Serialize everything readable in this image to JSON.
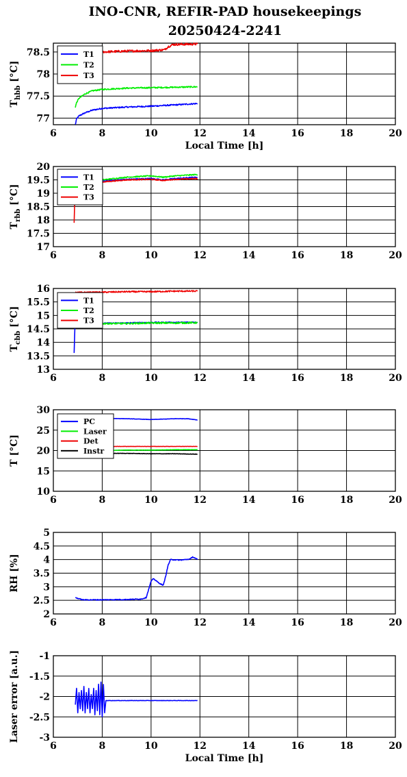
{
  "figure": {
    "title_line1": "INO-CNR, REFIR-PAD housekeepings",
    "title_line2": "20250424-2241"
  },
  "chart_data": [
    {
      "type": "line",
      "ylabel": "T",
      "ylabel_sub": "hbb",
      "ylabel_unit": "[°C]",
      "xlabel": "Local Time [h]",
      "xlim": [
        6,
        20
      ],
      "ylim": [
        76.85,
        78.7
      ],
      "xticks": [
        "6",
        "8",
        "10",
        "12",
        "14",
        "16",
        "18",
        "20"
      ],
      "yticks": [
        {
          "v": 77,
          "label": "77"
        },
        {
          "v": 77.5,
          "label": "77.5"
        },
        {
          "v": 78,
          "label": "78"
        },
        {
          "v": 78.5,
          "label": "78.5"
        }
      ],
      "grid": true,
      "legend_position": "top-left",
      "series": [
        {
          "name": "T1",
          "color": "#0000ff",
          "noise": 0.015,
          "points": [
            [
              6.9,
              76.85
            ],
            [
              6.95,
              76.98
            ],
            [
              7.05,
              77.05
            ],
            [
              7.3,
              77.12
            ],
            [
              7.6,
              77.18
            ],
            [
              8.0,
              77.22
            ],
            [
              9.0,
              77.25
            ],
            [
              10.0,
              77.27
            ],
            [
              11.0,
              77.3
            ],
            [
              11.9,
              77.33
            ]
          ]
        },
        {
          "name": "T2",
          "color": "#00ee00",
          "noise": 0.015,
          "points": [
            [
              6.9,
              77.25
            ],
            [
              6.95,
              77.35
            ],
            [
              7.05,
              77.45
            ],
            [
              7.3,
              77.55
            ],
            [
              7.6,
              77.62
            ],
            [
              8.0,
              77.65
            ],
            [
              9.0,
              77.68
            ],
            [
              10.0,
              77.69
            ],
            [
              11.0,
              77.7
            ],
            [
              11.9,
              77.71
            ]
          ]
        },
        {
          "name": "T3",
          "color": "#ee0000",
          "noise": 0.025,
          "points": [
            [
              7.0,
              78.48
            ],
            [
              8.0,
              78.5
            ],
            [
              9.0,
              78.52
            ],
            [
              10.0,
              78.53
            ],
            [
              10.55,
              78.55
            ],
            [
              10.7,
              78.62
            ],
            [
              10.9,
              78.67
            ],
            [
              11.9,
              78.68
            ]
          ]
        }
      ]
    },
    {
      "type": "line",
      "ylabel": "T",
      "ylabel_sub": "rbb",
      "ylabel_unit": "[°C]",
      "xlabel": "",
      "xlim": [
        6,
        20
      ],
      "ylim": [
        17,
        20
      ],
      "xticks": [
        "6",
        "8",
        "10",
        "12",
        "14",
        "16",
        "18",
        "20"
      ],
      "yticks": [
        {
          "v": 17,
          "label": "17"
        },
        {
          "v": 17.5,
          "label": "17.5"
        },
        {
          "v": 18,
          "label": "18"
        },
        {
          "v": 18.5,
          "label": "18.5"
        },
        {
          "v": 19,
          "label": "19"
        },
        {
          "v": 19.5,
          "label": "19.5"
        },
        {
          "v": 20,
          "label": "20"
        }
      ],
      "grid": true,
      "legend_position": "top-left",
      "series": [
        {
          "name": "T1",
          "color": "#0000ff",
          "noise": 0.02,
          "points": [
            [
              6.85,
              18.6
            ],
            [
              6.9,
              19.2
            ],
            [
              7.2,
              19.35
            ],
            [
              8.0,
              19.45
            ],
            [
              9.0,
              19.52
            ],
            [
              10.0,
              19.55
            ],
            [
              10.5,
              19.5
            ],
            [
              11.0,
              19.55
            ],
            [
              11.9,
              19.6
            ]
          ]
        },
        {
          "name": "T2",
          "color": "#00ee00",
          "noise": 0.02,
          "points": [
            [
              6.85,
              18.9
            ],
            [
              6.9,
              19.3
            ],
            [
              7.2,
              19.4
            ],
            [
              8.0,
              19.5
            ],
            [
              9.0,
              19.6
            ],
            [
              10.0,
              19.65
            ],
            [
              10.5,
              19.6
            ],
            [
              11.0,
              19.65
            ],
            [
              11.9,
              19.7
            ]
          ]
        },
        {
          "name": "T3",
          "color": "#ee0000",
          "noise": 0.02,
          "points": [
            [
              6.85,
              17.9
            ],
            [
              6.88,
              18.9
            ],
            [
              6.9,
              19.25
            ],
            [
              7.2,
              19.35
            ],
            [
              8.0,
              19.42
            ],
            [
              9.0,
              19.5
            ],
            [
              10.0,
              19.52
            ],
            [
              10.5,
              19.48
            ],
            [
              11.0,
              19.52
            ],
            [
              11.9,
              19.55
            ]
          ]
        }
      ]
    },
    {
      "type": "line",
      "ylabel": "T",
      "ylabel_sub": "cbb",
      "ylabel_unit": "[°C]",
      "xlabel": "",
      "xlim": [
        6,
        20
      ],
      "ylim": [
        13,
        16
      ],
      "xticks": [
        "6",
        "8",
        "10",
        "12",
        "14",
        "16",
        "18",
        "20"
      ],
      "yticks": [
        {
          "v": 13,
          "label": "13"
        },
        {
          "v": 13.5,
          "label": "13.5"
        },
        {
          "v": 14,
          "label": "14"
        },
        {
          "v": 14.5,
          "label": "14.5"
        },
        {
          "v": 15,
          "label": "15"
        },
        {
          "v": 15.5,
          "label": "15.5"
        },
        {
          "v": 16,
          "label": "16"
        }
      ],
      "grid": true,
      "legend_position": "top-left",
      "series": [
        {
          "name": "T1",
          "color": "#0000ff",
          "noise": 0.02,
          "points": [
            [
              6.85,
              13.6
            ],
            [
              6.88,
              14.5
            ],
            [
              6.9,
              14.68
            ],
            [
              7.5,
              14.7
            ],
            [
              9.0,
              14.72
            ],
            [
              10.0,
              14.74
            ],
            [
              11.0,
              14.74
            ],
            [
              11.9,
              14.75
            ]
          ]
        },
        {
          "name": "T2",
          "color": "#00ee00",
          "noise": 0.03,
          "points": [
            [
              6.88,
              14.65
            ],
            [
              7.5,
              14.7
            ],
            [
              9.0,
              14.7
            ],
            [
              10.0,
              14.72
            ],
            [
              11.0,
              14.72
            ],
            [
              11.9,
              14.73
            ]
          ]
        },
        {
          "name": "T3",
          "color": "#ee0000",
          "noise": 0.025,
          "points": [
            [
              6.9,
              15.85
            ],
            [
              8.0,
              15.86
            ],
            [
              9.0,
              15.88
            ],
            [
              10.0,
              15.88
            ],
            [
              11.0,
              15.9
            ],
            [
              11.9,
              15.9
            ]
          ]
        }
      ]
    },
    {
      "type": "line",
      "ylabel": "T [°C]",
      "ylabel_sub": "",
      "ylabel_unit": "",
      "xlabel": "",
      "xlim": [
        6,
        20
      ],
      "ylim": [
        10,
        30
      ],
      "xticks": [
        "6",
        "8",
        "10",
        "12",
        "14",
        "16",
        "18",
        "20"
      ],
      "yticks": [
        {
          "v": 10,
          "label": "10"
        },
        {
          "v": 15,
          "label": "15"
        },
        {
          "v": 20,
          "label": "20"
        },
        {
          "v": 25,
          "label": "25"
        },
        {
          "v": 30,
          "label": "30"
        }
      ],
      "grid": true,
      "legend_position": "top-left",
      "series": [
        {
          "name": "PC",
          "color": "#0000ff",
          "noise": 0.04,
          "points": [
            [
              6.9,
              27.8
            ],
            [
              8.0,
              27.9
            ],
            [
              9.0,
              27.8
            ],
            [
              10.0,
              27.6
            ],
            [
              11.0,
              27.8
            ],
            [
              11.5,
              27.8
            ],
            [
              11.9,
              27.5
            ]
          ]
        },
        {
          "name": "Laser",
          "color": "#00ee00",
          "noise": 0.03,
          "points": [
            [
              6.9,
              20.0
            ],
            [
              8.0,
              20.0
            ],
            [
              9.0,
              20.1
            ],
            [
              10.0,
              20.1
            ],
            [
              11.0,
              20.2
            ],
            [
              11.9,
              20.2
            ]
          ]
        },
        {
          "name": "Det",
          "color": "#ee0000",
          "noise": 0.03,
          "points": [
            [
              6.9,
              21.0
            ],
            [
              8.0,
              21.0
            ],
            [
              9.0,
              21.0
            ],
            [
              10.0,
              21.0
            ],
            [
              11.0,
              21.0
            ],
            [
              11.9,
              21.0
            ]
          ]
        },
        {
          "name": "Instr",
          "color": "#000000",
          "noise": 0.05,
          "points": [
            [
              6.9,
              19.3
            ],
            [
              8.0,
              19.3
            ],
            [
              9.0,
              19.3
            ],
            [
              10.0,
              19.2
            ],
            [
              11.0,
              19.2
            ],
            [
              11.9,
              19.1
            ]
          ]
        }
      ]
    },
    {
      "type": "line",
      "ylabel": "RH [%]",
      "ylabel_sub": "",
      "ylabel_unit": "",
      "xlabel": "",
      "xlim": [
        6,
        20
      ],
      "ylim": [
        2,
        5
      ],
      "xticks": [
        "6",
        "8",
        "10",
        "12",
        "14",
        "16",
        "18",
        "20"
      ],
      "yticks": [
        {
          "v": 2,
          "label": "2"
        },
        {
          "v": 2.5,
          "label": "2.5"
        },
        {
          "v": 3,
          "label": "3"
        },
        {
          "v": 3.5,
          "label": "3.5"
        },
        {
          "v": 4,
          "label": "4"
        },
        {
          "v": 4.5,
          "label": "4.5"
        },
        {
          "v": 5,
          "label": "5"
        }
      ],
      "grid": true,
      "legend_position": "none",
      "series": [
        {
          "name": "",
          "color": "#0000ff",
          "noise": 0.015,
          "points": [
            [
              6.9,
              2.6
            ],
            [
              7.2,
              2.52
            ],
            [
              8.0,
              2.52
            ],
            [
              9.0,
              2.53
            ],
            [
              9.6,
              2.55
            ],
            [
              9.8,
              2.6
            ],
            [
              9.9,
              2.9
            ],
            [
              10.0,
              3.2
            ],
            [
              10.1,
              3.3
            ],
            [
              10.3,
              3.15
            ],
            [
              10.5,
              3.05
            ],
            [
              10.6,
              3.4
            ],
            [
              10.7,
              3.8
            ],
            [
              10.8,
              4.0
            ],
            [
              11.2,
              3.98
            ],
            [
              11.6,
              4.02
            ],
            [
              11.7,
              4.1
            ],
            [
              11.8,
              4.05
            ],
            [
              11.9,
              4.0
            ]
          ]
        }
      ]
    },
    {
      "type": "line",
      "ylabel": "Laser error [a.u.]",
      "ylabel_sub": "",
      "ylabel_unit": "",
      "xlabel": "Local Time [h]",
      "xlim": [
        6,
        20
      ],
      "ylim": [
        -3,
        -1
      ],
      "xticks": [
        "6",
        "8",
        "10",
        "12",
        "14",
        "16",
        "18",
        "20"
      ],
      "yticks": [
        {
          "v": -3,
          "label": "-3"
        },
        {
          "v": -2.5,
          "label": "-2.5"
        },
        {
          "v": -2,
          "label": "-2"
        },
        {
          "v": -1.5,
          "label": "-1.5"
        },
        {
          "v": -1,
          "label": "-1"
        }
      ],
      "grid": true,
      "legend_position": "none",
      "series": [
        {
          "name": "",
          "color": "#0000ff",
          "noise": 0.004,
          "points": [
            [
              6.9,
              -2.2
            ],
            [
              6.95,
              -1.8
            ],
            [
              7.0,
              -2.4
            ],
            [
              7.05,
              -1.9
            ],
            [
              7.1,
              -2.3
            ],
            [
              7.15,
              -1.85
            ],
            [
              7.2,
              -2.35
            ],
            [
              7.25,
              -1.75
            ],
            [
              7.3,
              -2.4
            ],
            [
              7.35,
              -1.9
            ],
            [
              7.4,
              -2.3
            ],
            [
              7.45,
              -1.8
            ],
            [
              7.5,
              -2.4
            ],
            [
              7.55,
              -1.95
            ],
            [
              7.6,
              -2.3
            ],
            [
              7.65,
              -1.8
            ],
            [
              7.7,
              -2.45
            ],
            [
              7.75,
              -1.85
            ],
            [
              7.8,
              -2.35
            ],
            [
              7.85,
              -1.7
            ],
            [
              7.9,
              -2.45
            ],
            [
              7.95,
              -1.65
            ],
            [
              8.0,
              -2.5
            ],
            [
              8.05,
              -1.7
            ],
            [
              8.1,
              -2.4
            ],
            [
              8.15,
              -2.1
            ],
            [
              9.0,
              -2.1
            ],
            [
              10.0,
              -2.1
            ],
            [
              11.0,
              -2.1
            ],
            [
              11.9,
              -2.1
            ]
          ]
        }
      ]
    }
  ]
}
